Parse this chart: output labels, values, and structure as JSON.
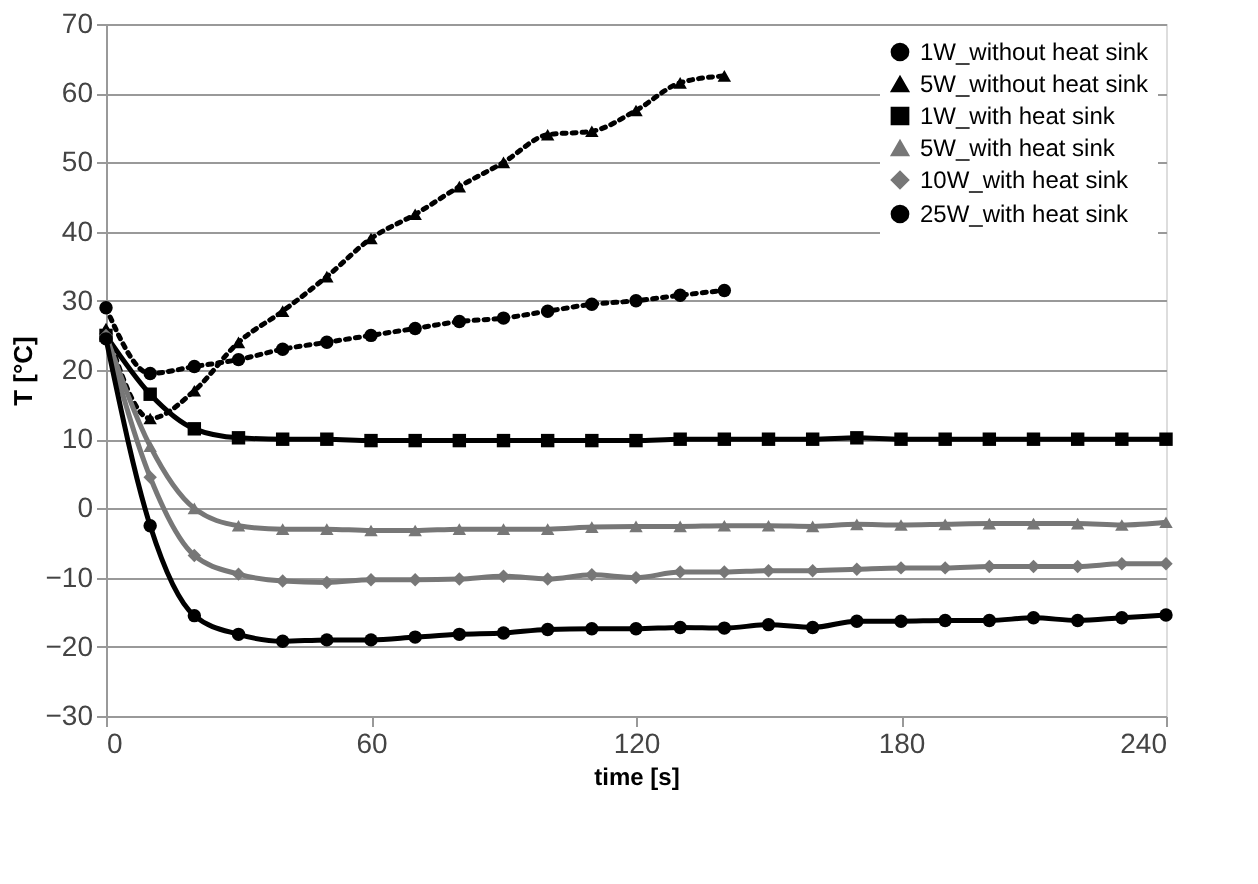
{
  "chart_data": {
    "type": "line",
    "xlabel": "time [s]",
    "ylabel": "T [°C]",
    "xlim": [
      0,
      240
    ],
    "xticks": [
      0,
      60,
      120,
      180,
      240
    ],
    "ylim": [
      -30,
      70
    ],
    "yticks": [
      -30,
      -20,
      -10,
      0,
      10,
      20,
      30,
      40,
      50,
      60,
      70
    ],
    "grid": "y",
    "legend": "top right",
    "series": [
      {
        "name": "1W_without heat sink",
        "color": "#000000",
        "marker": "circle",
        "line_style": "dotted",
        "x": [
          0,
          10,
          20,
          30,
          40,
          50,
          60,
          70,
          80,
          90,
          100,
          110,
          120,
          130,
          140
        ],
        "values": [
          29,
          19.5,
          20.5,
          21.5,
          23,
          24,
          25,
          26,
          27,
          27.5,
          28.5,
          29.5,
          30,
          30.8,
          31.5
        ]
      },
      {
        "name": "5W_without heat sink",
        "color": "#000000",
        "marker": "triangle",
        "line_style": "dotted",
        "x": [
          0,
          10,
          20,
          30,
          40,
          50,
          60,
          70,
          80,
          90,
          100,
          110,
          120,
          130,
          140
        ],
        "values": [
          26,
          13,
          17,
          24,
          28.5,
          33.5,
          39,
          42.5,
          46.5,
          50,
          54,
          54.5,
          57.5,
          61.5,
          62.5
        ]
      },
      {
        "name": "1W_with heat sink",
        "color": "#000000",
        "marker": "square",
        "line_style": "solid",
        "x": [
          0,
          10,
          20,
          30,
          40,
          50,
          60,
          70,
          80,
          90,
          100,
          110,
          120,
          130,
          140,
          150,
          160,
          170,
          180,
          190,
          200,
          210,
          220,
          230,
          240
        ],
        "values": [
          25,
          16.5,
          11.5,
          10.2,
          10,
          10,
          9.8,
          9.8,
          9.8,
          9.8,
          9.8,
          9.8,
          9.8,
          10,
          10,
          10,
          10,
          10.2,
          10,
          10,
          10,
          10,
          10,
          10,
          10
        ]
      },
      {
        "name": "5W_with heat sink",
        "color": "#777777",
        "marker": "triangle",
        "line_style": "solid",
        "x": [
          0,
          10,
          20,
          30,
          40,
          50,
          60,
          70,
          80,
          90,
          100,
          110,
          120,
          130,
          140,
          150,
          160,
          170,
          180,
          190,
          200,
          210,
          220,
          230,
          240
        ],
        "values": [
          25,
          9,
          0,
          -2.5,
          -3,
          -3,
          -3.2,
          -3.2,
          -3,
          -3,
          -3,
          -2.7,
          -2.6,
          -2.6,
          -2.5,
          -2.5,
          -2.6,
          -2.3,
          -2.4,
          -2.3,
          -2.2,
          -2.2,
          -2.2,
          -2.4,
          -2
        ]
      },
      {
        "name": "10W_with heat sink",
        "color": "#777777",
        "marker": "diamond",
        "line_style": "solid",
        "x": [
          0,
          10,
          20,
          30,
          40,
          50,
          60,
          70,
          80,
          90,
          100,
          110,
          120,
          130,
          140,
          150,
          160,
          170,
          180,
          190,
          200,
          210,
          220,
          230,
          240
        ],
        "values": [
          25,
          4.5,
          -6.8,
          -9.5,
          -10.5,
          -10.7,
          -10.3,
          -10.3,
          -10.2,
          -9.8,
          -10.2,
          -9.6,
          -10,
          -9.2,
          -9.2,
          -9,
          -9,
          -8.8,
          -8.6,
          -8.6,
          -8.4,
          -8.4,
          -8.4,
          -8,
          -8
        ]
      },
      {
        "name": "25W_with heat sink",
        "color": "#000000",
        "marker": "circle",
        "line_style": "solid",
        "x": [
          0,
          10,
          20,
          30,
          40,
          50,
          60,
          70,
          80,
          90,
          100,
          110,
          120,
          130,
          140,
          150,
          160,
          170,
          180,
          190,
          200,
          210,
          220,
          230,
          240
        ],
        "values": [
          24.5,
          -2.5,
          -15.5,
          -18.2,
          -19.2,
          -19,
          -19,
          -18.6,
          -18.2,
          -18,
          -17.5,
          -17.4,
          -17.4,
          -17.2,
          -17.3,
          -16.8,
          -17.2,
          -16.3,
          -16.3,
          -16.2,
          -16.2,
          -15.8,
          -16.2,
          -15.8,
          -15.4
        ]
      }
    ]
  }
}
